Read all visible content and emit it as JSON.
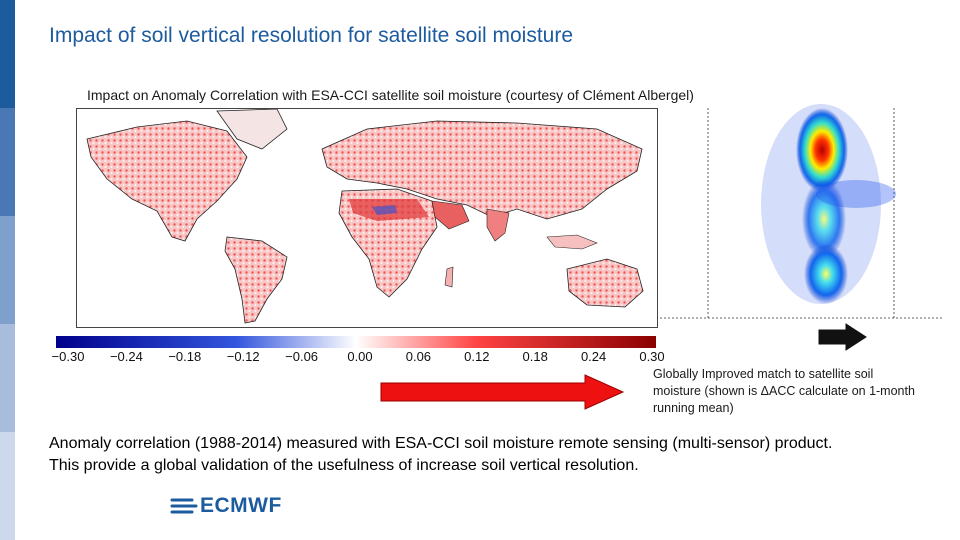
{
  "slide": {
    "title": "Impact of soil vertical resolution for satellite soil moisture",
    "subtitle": "Impact on Anomaly Correlation with ESA-CCI satellite soil moisture (courtesy of Clément Albergel)",
    "caption": "Globally Improved match to satellite soil moisture (shown is ΔACC calculate on 1-month running mean)",
    "footnote_line1": "Anomaly correlation (1988-2014) measured with ESA-CCI soil moisture remote sensing (multi-sensor) product.",
    "footnote_line2": "This provide a global validation of the usefulness of increase soil vertical resolution.",
    "logo_text": "ECMWF"
  },
  "colorbar": {
    "ticks": [
      "−0.30",
      "−0.24",
      "−0.18",
      "−0.12",
      "−0.06",
      "0.00",
      "0.06",
      "0.12",
      "0.18",
      "0.24",
      "0.30"
    ],
    "colors": [
      "#00008b",
      "#3355dd",
      "#ffffff",
      "#ff4444",
      "#8b0000"
    ]
  },
  "colors": {
    "brand": "#1d5b9f",
    "red_arrow": "#ee1111",
    "black_arrow": "#111111",
    "sidebar": [
      "#1d5b9f",
      "#4a78b4",
      "#7f9fcc",
      "#a8bcdc",
      "#cdd8ec"
    ]
  }
}
